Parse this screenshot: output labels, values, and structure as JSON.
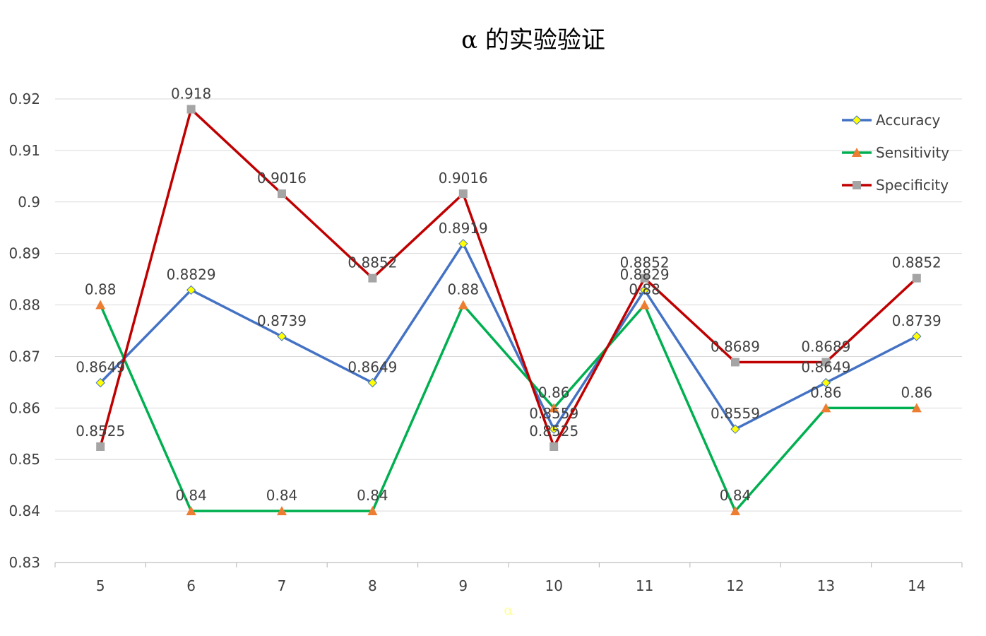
{
  "chart_data": {
    "type": "line",
    "title": "α 的实验验证",
    "xlabel": "α",
    "ylabel": "",
    "x": [
      5,
      6,
      7,
      8,
      9,
      10,
      11,
      12,
      13,
      14
    ],
    "ylim": [
      0.83,
      0.92
    ],
    "yticks": [
      0.83,
      0.84,
      0.85,
      0.86,
      0.87,
      0.88,
      0.89,
      0.9,
      0.91,
      0.92
    ],
    "grid": true,
    "legend_position": "top-right",
    "series": [
      {
        "name": "Accuracy",
        "color": "#4472c4",
        "marker": "diamond",
        "marker_color": "#ffff00",
        "values": [
          0.8649,
          0.8829,
          0.8739,
          0.8649,
          0.8919,
          0.8559,
          0.8829,
          0.8559,
          0.8649,
          0.8739
        ]
      },
      {
        "name": "Sensitivity",
        "color": "#00b050",
        "marker": "triangle",
        "marker_color": "#ed7d31",
        "values": [
          0.88,
          0.84,
          0.84,
          0.84,
          0.88,
          0.86,
          0.88,
          0.84,
          0.86,
          0.86
        ]
      },
      {
        "name": "Specificity",
        "color": "#c00000",
        "marker": "square",
        "marker_color": "#a5a5a5",
        "values": [
          0.8525,
          0.918,
          0.9016,
          0.8852,
          0.9016,
          0.8525,
          0.8852,
          0.8689,
          0.8689,
          0.8852
        ]
      }
    ]
  }
}
